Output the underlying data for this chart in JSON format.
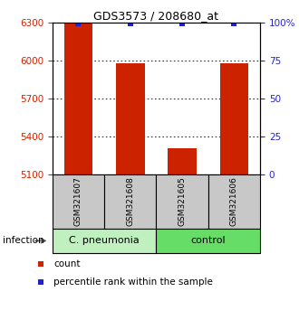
{
  "title": "GDS3573 / 208680_at",
  "samples": [
    "GSM321607",
    "GSM321608",
    "GSM321605",
    "GSM321606"
  ],
  "counts": [
    6290,
    5980,
    5310,
    5980
  ],
  "percentile_ranks": [
    99,
    99,
    99,
    99
  ],
  "ylim_left": [
    5100,
    6300
  ],
  "ylim_right": [
    0,
    100
  ],
  "yticks_left": [
    5100,
    5400,
    5700,
    6000,
    6300
  ],
  "yticks_right": [
    0,
    25,
    50,
    75,
    100
  ],
  "ytick_labels_right": [
    "0",
    "25",
    "50",
    "75",
    "100%"
  ],
  "bar_color": "#cc2200",
  "dot_color": "#2222cc",
  "bar_width": 0.55,
  "sample_box_color": "#c8c8c8",
  "group_spans": [
    {
      "name": "C. pneumonia",
      "start": 0,
      "end": 2,
      "color": "#c0f0c0"
    },
    {
      "name": "control",
      "start": 2,
      "end": 4,
      "color": "#66dd66"
    }
  ],
  "legend_items": [
    {
      "color": "#cc2200",
      "label": "count"
    },
    {
      "color": "#2222cc",
      "label": "percentile rank within the sample"
    }
  ],
  "infection_label": "infection"
}
